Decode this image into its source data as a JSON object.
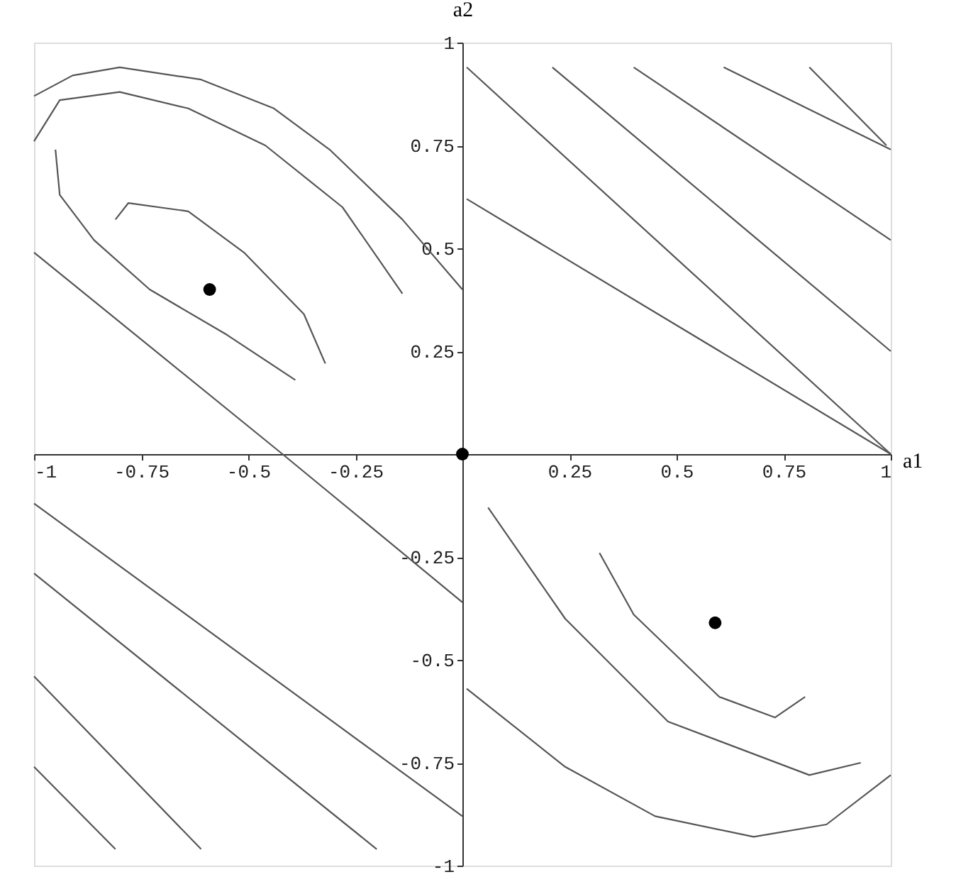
{
  "chart_data": {
    "type": "line",
    "xlabel": "a1",
    "ylabel": "a2",
    "xlim": [
      -1,
      1
    ],
    "ylim": [
      -1,
      1
    ],
    "xticks": [
      -1,
      -0.75,
      -0.5,
      -0.25,
      0.25,
      0.5,
      0.75,
      1
    ],
    "yticks": [
      -1,
      -0.75,
      -0.5,
      -0.25,
      0.25,
      0.5,
      0.75,
      1
    ],
    "grid": false,
    "marker": "none",
    "line_style": "solid",
    "series": [
      {
        "color": "#555555",
        "x": [
          -0.81,
          -0.78,
          -0.64,
          -0.51,
          -0.37,
          -0.32
        ],
        "values": [
          0.57,
          0.61,
          0.59,
          0.49,
          0.34,
          0.22
        ]
      },
      {
        "color": "#555555",
        "x": [
          -1.0,
          -0.94,
          -0.8,
          -0.64,
          -0.46,
          -0.28,
          -0.14
        ],
        "values": [
          0.76,
          0.86,
          0.88,
          0.84,
          0.75,
          0.6,
          0.39
        ]
      },
      {
        "color": "#555555",
        "x": [
          -1.0,
          -0.91,
          -0.8,
          -0.61,
          -0.44,
          -0.31,
          -0.14,
          0.0
        ],
        "values": [
          0.87,
          0.92,
          0.94,
          0.91,
          0.84,
          0.74,
          0.57,
          0.4
        ]
      },
      {
        "color": "#555555",
        "x": [
          -0.95,
          -0.94,
          -0.86,
          -0.73,
          -0.55,
          -0.39
        ],
        "values": [
          0.74,
          0.63,
          0.52,
          0.4,
          0.29,
          0.18
        ]
      },
      {
        "color": "#555555",
        "x": [
          -1.0,
          -0.42,
          0.0
        ],
        "values": [
          0.49,
          0.0,
          -0.36
        ]
      },
      {
        "color": "#555555",
        "x": [
          -1.0,
          0.0
        ],
        "values": [
          -0.12,
          -0.88
        ]
      },
      {
        "color": "#555555",
        "x": [
          -1.0,
          -0.2
        ],
        "values": [
          -0.29,
          -0.96
        ]
      },
      {
        "color": "#555555",
        "x": [
          -1.0,
          -0.61
        ],
        "values": [
          -0.54,
          -0.96
        ]
      },
      {
        "color": "#555555",
        "x": [
          -1.0,
          -0.81
        ],
        "values": [
          -0.76,
          -0.96
        ]
      },
      {
        "color": "#555555",
        "x": [
          0.01,
          1.0
        ],
        "values": [
          0.94,
          0.0
        ]
      },
      {
        "color": "#555555",
        "x": [
          0.01,
          1.0
        ],
        "values": [
          0.62,
          0.0
        ]
      },
      {
        "color": "#555555",
        "x": [
          0.21,
          1.0
        ],
        "values": [
          0.94,
          0.25
        ]
      },
      {
        "color": "#555555",
        "x": [
          0.4,
          1.0
        ],
        "values": [
          0.94,
          0.52
        ]
      },
      {
        "color": "#555555",
        "x": [
          0.61,
          1.0
        ],
        "values": [
          0.94,
          0.74
        ]
      },
      {
        "color": "#555555",
        "x": [
          0.81,
          0.99
        ],
        "values": [
          0.94,
          0.75
        ]
      },
      {
        "color": "#555555",
        "x": [
          0.32,
          0.4,
          0.6,
          0.73,
          0.8
        ],
        "values": [
          -0.24,
          -0.39,
          -0.59,
          -0.64,
          -0.59
        ]
      },
      {
        "color": "#555555",
        "x": [
          0.06,
          0.24,
          0.48,
          0.81,
          0.93
        ],
        "values": [
          -0.13,
          -0.4,
          -0.65,
          -0.78,
          -0.75
        ]
      },
      {
        "color": "#555555",
        "x": [
          0.01,
          0.24,
          0.45,
          0.68,
          0.85,
          1.0
        ],
        "values": [
          -0.57,
          -0.76,
          -0.88,
          -0.93,
          -0.9,
          -0.78
        ]
      },
      {
        "type": "scatter",
        "marker": "circle",
        "color": "#000000",
        "x": [
          -0.59,
          0.0,
          0.59
        ],
        "values": [
          0.4,
          0.0,
          -0.41
        ]
      }
    ]
  }
}
